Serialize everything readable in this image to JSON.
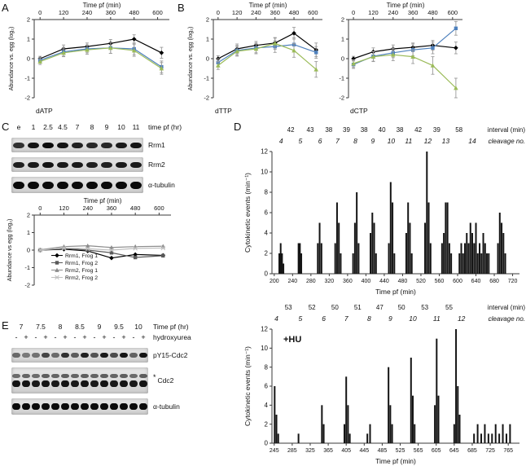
{
  "figure": {
    "panels": {
      "a": "A",
      "b": "B",
      "c": "C",
      "d": "D",
      "e": "E"
    }
  },
  "colors": {
    "black": "#000000",
    "blue": "#4f81bd",
    "green": "#9bbb59",
    "gray_dark": "#595959",
    "gray_mid": "#8c8c8c",
    "gray_light": "#bfbfbf",
    "error_bar": "#9a9a9a"
  },
  "chart_data": [
    {
      "id": "datp",
      "type": "line",
      "title": "Time pf (min)",
      "ylabel": "Abundance vs. egg (log₂)",
      "corner_label": "dATP",
      "x": [
        0,
        120,
        240,
        360,
        480,
        620
      ],
      "x_ticks": [
        0,
        120,
        240,
        360,
        480,
        600
      ],
      "xlim": [
        -30,
        660
      ],
      "ylim": [
        -2,
        2
      ],
      "y_ticks": [
        2,
        1,
        0,
        -1,
        -2
      ],
      "series": [
        {
          "name": "series-1",
          "label": "",
          "color": "#000000",
          "marker": "diamond",
          "values": [
            0,
            0.5,
            0.62,
            0.78,
            1.0,
            0.3
          ],
          "errors": [
            0.12,
            0.2,
            0.18,
            0.2,
            0.22,
            0.28
          ]
        },
        {
          "name": "series-2",
          "label": "",
          "color": "#4f81bd",
          "marker": "square",
          "values": [
            -0.08,
            0.35,
            0.5,
            0.55,
            0.5,
            -0.42
          ],
          "errors": [
            0.15,
            0.22,
            0.2,
            0.28,
            0.3,
            0.3
          ]
        },
        {
          "name": "series-3",
          "label": "",
          "color": "#9bbb59",
          "marker": "triangle",
          "values": [
            -0.15,
            0.3,
            0.45,
            0.55,
            0.42,
            -0.5
          ],
          "errors": [
            0.15,
            0.2,
            0.22,
            0.28,
            0.3,
            0.3
          ]
        }
      ]
    },
    {
      "id": "dttp",
      "type": "line",
      "title": "Time pf (min)",
      "ylabel": "Abundance vs. egg (log₂)",
      "corner_label": "dTTP",
      "x": [
        0,
        120,
        240,
        360,
        480,
        620
      ],
      "x_ticks": [
        0,
        120,
        240,
        360,
        480,
        600
      ],
      "xlim": [
        -30,
        660
      ],
      "ylim": [
        -2,
        2
      ],
      "y_ticks": [
        2,
        1,
        0,
        -1,
        -2
      ],
      "series": [
        {
          "name": "series-1",
          "label": "",
          "color": "#000000",
          "marker": "diamond",
          "values": [
            0,
            0.5,
            0.68,
            0.8,
            1.3,
            0.45
          ],
          "errors": [
            0.15,
            0.25,
            0.2,
            0.25,
            0.3,
            0.35
          ]
        },
        {
          "name": "series-2",
          "label": "",
          "color": "#4f81bd",
          "marker": "square",
          "values": [
            -0.2,
            0.42,
            0.55,
            0.62,
            0.72,
            0.32
          ],
          "errors": [
            0.2,
            0.25,
            0.25,
            0.3,
            0.35,
            0.3
          ]
        },
        {
          "name": "series-3",
          "label": "",
          "color": "#9bbb59",
          "marker": "triangle",
          "values": [
            -0.35,
            0.38,
            0.5,
            0.78,
            0.42,
            -0.55
          ],
          "errors": [
            0.2,
            0.25,
            0.25,
            0.3,
            0.35,
            0.4
          ]
        }
      ]
    },
    {
      "id": "dctp",
      "type": "line",
      "title": "Time pf (min)",
      "ylabel": "",
      "corner_label": "dCTP",
      "x": [
        0,
        120,
        240,
        360,
        480,
        620
      ],
      "x_ticks": [
        0,
        120,
        240,
        360,
        480,
        600
      ],
      "xlim": [
        -30,
        660
      ],
      "ylim": [
        -2,
        2
      ],
      "y_ticks": [
        2,
        1,
        0,
        -1,
        -2
      ],
      "series": [
        {
          "name": "series-1",
          "label": "",
          "color": "#000000",
          "marker": "diamond",
          "values": [
            0,
            0.35,
            0.5,
            0.58,
            0.68,
            0.55
          ],
          "errors": [
            0.12,
            0.2,
            0.2,
            0.22,
            0.25,
            0.3
          ]
        },
        {
          "name": "series-2",
          "label": "",
          "color": "#4f81bd",
          "marker": "square",
          "values": [
            -0.3,
            0.12,
            0.3,
            0.45,
            0.55,
            1.55
          ],
          "errors": [
            0.2,
            0.25,
            0.25,
            0.3,
            0.3,
            0.35
          ]
        },
        {
          "name": "series-3",
          "label": "",
          "color": "#9bbb59",
          "marker": "triangle",
          "values": [
            -0.25,
            0.1,
            0.2,
            0.1,
            -0.35,
            -1.5
          ],
          "errors": [
            0.2,
            0.25,
            0.3,
            0.35,
            0.45,
            0.5
          ]
        }
      ]
    },
    {
      "id": "rrm",
      "type": "line",
      "title": "Time pf (min)",
      "ylabel": "Abundance vs egg (log₂)",
      "corner_label": "",
      "x": [
        0,
        120,
        240,
        360,
        480,
        620
      ],
      "x_ticks": [
        0,
        120,
        240,
        360,
        480,
        600
      ],
      "xlim": [
        -30,
        660
      ],
      "ylim": [
        -2,
        2
      ],
      "y_ticks": [
        2,
        1,
        0,
        -1,
        -2
      ],
      "legend": true,
      "legend_pos": [
        64,
        76
      ],
      "series": [
        {
          "name": "rrm1-frog1",
          "label": "Rrm1, Frog 1",
          "color": "#000000",
          "marker": "diamond",
          "values": [
            0,
            0.05,
            -0.05,
            -0.45,
            -0.25,
            -0.3
          ]
        },
        {
          "name": "rrm1-frog2",
          "label": "Rrm1, Frog 2",
          "color": "#595959",
          "marker": "square",
          "values": [
            0,
            0.1,
            0,
            -0.15,
            -0.42,
            -0.32
          ]
        },
        {
          "name": "rrm2-frog1",
          "label": "Rrm2, Frog 1",
          "color": "#8c8c8c",
          "marker": "triangle",
          "values": [
            0.02,
            0.2,
            0.25,
            0.15,
            0.2,
            0.22
          ]
        },
        {
          "name": "rrm2-frog2",
          "label": "Rrm2, Frog 2",
          "color": "#bfbfbf",
          "marker": "x",
          "values": [
            0,
            0.12,
            0.08,
            0,
            0.1,
            0.12
          ]
        }
      ]
    },
    {
      "id": "cyto-control",
      "type": "bar",
      "ylabel": "Cytokinetic events (min⁻¹)",
      "xlabel": "Time pf (min)",
      "inner_label": "",
      "xlim": [
        195,
        735
      ],
      "ylim": [
        0,
        12
      ],
      "x_ticks": [
        200,
        240,
        280,
        320,
        360,
        400,
        440,
        480,
        520,
        560,
        600,
        640,
        680,
        720
      ],
      "y_ticks": [
        0,
        2,
        4,
        6,
        8,
        10,
        12
      ],
      "annotations": {
        "intervals": [
          42,
          43,
          38,
          39,
          38,
          40,
          38,
          42,
          39,
          58
        ],
        "cleavages": [
          4,
          5,
          6,
          7,
          8,
          9,
          10,
          11,
          12,
          13,
          14
        ],
        "cleavage_x": [
          215,
          257,
          300,
          338,
          377,
          415,
          455,
          493,
          535,
          574,
          632
        ],
        "interval_label": "interval (min)",
        "cleavage_label": "cleavage no."
      },
      "bars": [
        [
          211,
          2
        ],
        [
          214,
          3
        ],
        [
          217,
          2
        ],
        [
          220,
          1
        ],
        [
          253,
          3
        ],
        [
          256,
          3
        ],
        [
          259,
          2
        ],
        [
          295,
          3
        ],
        [
          299,
          5
        ],
        [
          303,
          3
        ],
        [
          333,
          3
        ],
        [
          337,
          7
        ],
        [
          341,
          5
        ],
        [
          345,
          2
        ],
        [
          372,
          2
        ],
        [
          376,
          5
        ],
        [
          380,
          8
        ],
        [
          384,
          3
        ],
        [
          410,
          4
        ],
        [
          414,
          6
        ],
        [
          418,
          5
        ],
        [
          422,
          2
        ],
        [
          450,
          3
        ],
        [
          454,
          9
        ],
        [
          458,
          7
        ],
        [
          462,
          2
        ],
        [
          488,
          4
        ],
        [
          492,
          7
        ],
        [
          496,
          5
        ],
        [
          500,
          2
        ],
        [
          529,
          5
        ],
        [
          533,
          12
        ],
        [
          537,
          7
        ],
        [
          541,
          3
        ],
        [
          566,
          3
        ],
        [
          570,
          4
        ],
        [
          574,
          7
        ],
        [
          578,
          7
        ],
        [
          582,
          3
        ],
        [
          586,
          2
        ],
        [
          604,
          2
        ],
        [
          608,
          3
        ],
        [
          612,
          2
        ],
        [
          616,
          3
        ],
        [
          620,
          4
        ],
        [
          624,
          3
        ],
        [
          628,
          5
        ],
        [
          632,
          4
        ],
        [
          636,
          3
        ],
        [
          640,
          5
        ],
        [
          644,
          2
        ],
        [
          648,
          3
        ],
        [
          652,
          2
        ],
        [
          656,
          4
        ],
        [
          660,
          3
        ],
        [
          664,
          2
        ],
        [
          668,
          2
        ],
        [
          688,
          3
        ],
        [
          692,
          6
        ],
        [
          696,
          5
        ],
        [
          700,
          4
        ],
        [
          704,
          2
        ]
      ]
    },
    {
      "id": "cyto-hu",
      "type": "bar",
      "ylabel": "Cytokinetic events (min⁻¹)",
      "xlabel": "Time pf (min)",
      "inner_label": "+HU",
      "xlim": [
        240,
        790
      ],
      "ylim": [
        0,
        12
      ],
      "x_ticks": [
        245,
        285,
        325,
        365,
        405,
        445,
        485,
        525,
        565,
        605,
        645,
        685,
        725,
        765
      ],
      "y_ticks": [
        0,
        2,
        4,
        6,
        8,
        10,
        12
      ],
      "annotations": {
        "intervals": [
          53,
          52,
          50,
          51,
          47,
          50,
          53,
          55
        ],
        "cleavages": [
          4,
          5,
          6,
          7,
          8,
          9,
          10,
          11,
          12
        ],
        "cleavage_x": [
          250,
          303,
          355,
          405,
          456,
          503,
          553,
          606,
          661
        ],
        "interval_label": "interval (min)",
        "cleavage_label": "cleavage no."
      },
      "bars": [
        [
          246,
          6
        ],
        [
          250,
          3
        ],
        [
          254,
          1
        ],
        [
          299,
          1
        ],
        [
          351,
          4
        ],
        [
          355,
          2
        ],
        [
          401,
          2
        ],
        [
          405,
          7
        ],
        [
          409,
          4
        ],
        [
          413,
          1
        ],
        [
          452,
          1
        ],
        [
          458,
          2
        ],
        [
          499,
          8
        ],
        [
          503,
          4
        ],
        [
          507,
          2
        ],
        [
          549,
          9
        ],
        [
          553,
          5
        ],
        [
          557,
          2
        ],
        [
          602,
          4
        ],
        [
          606,
          11
        ],
        [
          610,
          5
        ],
        [
          645,
          2
        ],
        [
          649,
          12
        ],
        [
          653,
          6
        ],
        [
          657,
          3
        ],
        [
          689,
          1
        ],
        [
          697,
          2
        ],
        [
          705,
          1
        ],
        [
          713,
          2
        ],
        [
          721,
          1
        ],
        [
          729,
          1
        ],
        [
          737,
          2
        ],
        [
          745,
          1
        ],
        [
          753,
          2
        ],
        [
          761,
          1
        ],
        [
          769,
          2
        ]
      ]
    }
  ],
  "blot_c": {
    "lane_labels": [
      "e",
      "1",
      "2.5",
      "4.5",
      "7",
      "8",
      "9",
      "10",
      "11"
    ],
    "header_suffix": "time pf (hr)",
    "rows": [
      {
        "label": "Rrm1",
        "band_h": 7,
        "strip_h": 18,
        "intensities": [
          0.75,
          0.95,
          1,
          0.95,
          0.85,
          0.8,
          0.8,
          0.9,
          0.95
        ]
      },
      {
        "label": "Rrm2",
        "band_h": 7,
        "strip_h": 18,
        "intensities": [
          0.85,
          0.9,
          0.95,
          0.9,
          0.9,
          0.85,
          0.85,
          0.9,
          0.9
        ]
      },
      {
        "label": "α-tubulin",
        "band_h": 9,
        "strip_h": 20,
        "intensities": [
          1,
          1,
          1,
          1,
          1,
          1,
          1,
          1,
          1
        ]
      }
    ]
  },
  "blot_e": {
    "time_labels": [
      "7",
      "7.5",
      "8",
      "8.5",
      "9",
      "9.5",
      "10"
    ],
    "time_suffix": "Time pf (hr)",
    "hu_signs": [
      "-",
      "+",
      "-",
      "+",
      "-",
      "+",
      "-",
      "+",
      "-",
      "+",
      "-",
      "+",
      "-",
      "+"
    ],
    "hu_label": "hydroxyurea",
    "rows": [
      {
        "label": "pY15-Cdc2",
        "band_h": 6,
        "strip_h": 18,
        "intensities": [
          0.35,
          0.25,
          0.3,
          0.6,
          0.35,
          0.75,
          0.45,
          0.85,
          0.5,
          0.9,
          0.55,
          0.95,
          0.4,
          0.95
        ]
      },
      {
        "label": "Cdc2",
        "asterisk": "*",
        "band_h": 8,
        "strip_h": 32,
        "upper": [
          0.5,
          0.55,
          0.5,
          0.6,
          0.55,
          0.6,
          0.55,
          0.6,
          0.55,
          0.6,
          0.55,
          0.6,
          0.5,
          0.6
        ],
        "intensities": [
          0.95,
          0.95,
          0.9,
          0.95,
          0.9,
          0.95,
          0.9,
          0.95,
          0.9,
          0.95,
          0.9,
          0.95,
          0.9,
          0.95
        ]
      },
      {
        "label": "α-tubulin",
        "band_h": 8,
        "strip_h": 20,
        "intensities": [
          1,
          1,
          1,
          1,
          1,
          1,
          1,
          1,
          1,
          1,
          1,
          1,
          1,
          1
        ]
      }
    ]
  }
}
